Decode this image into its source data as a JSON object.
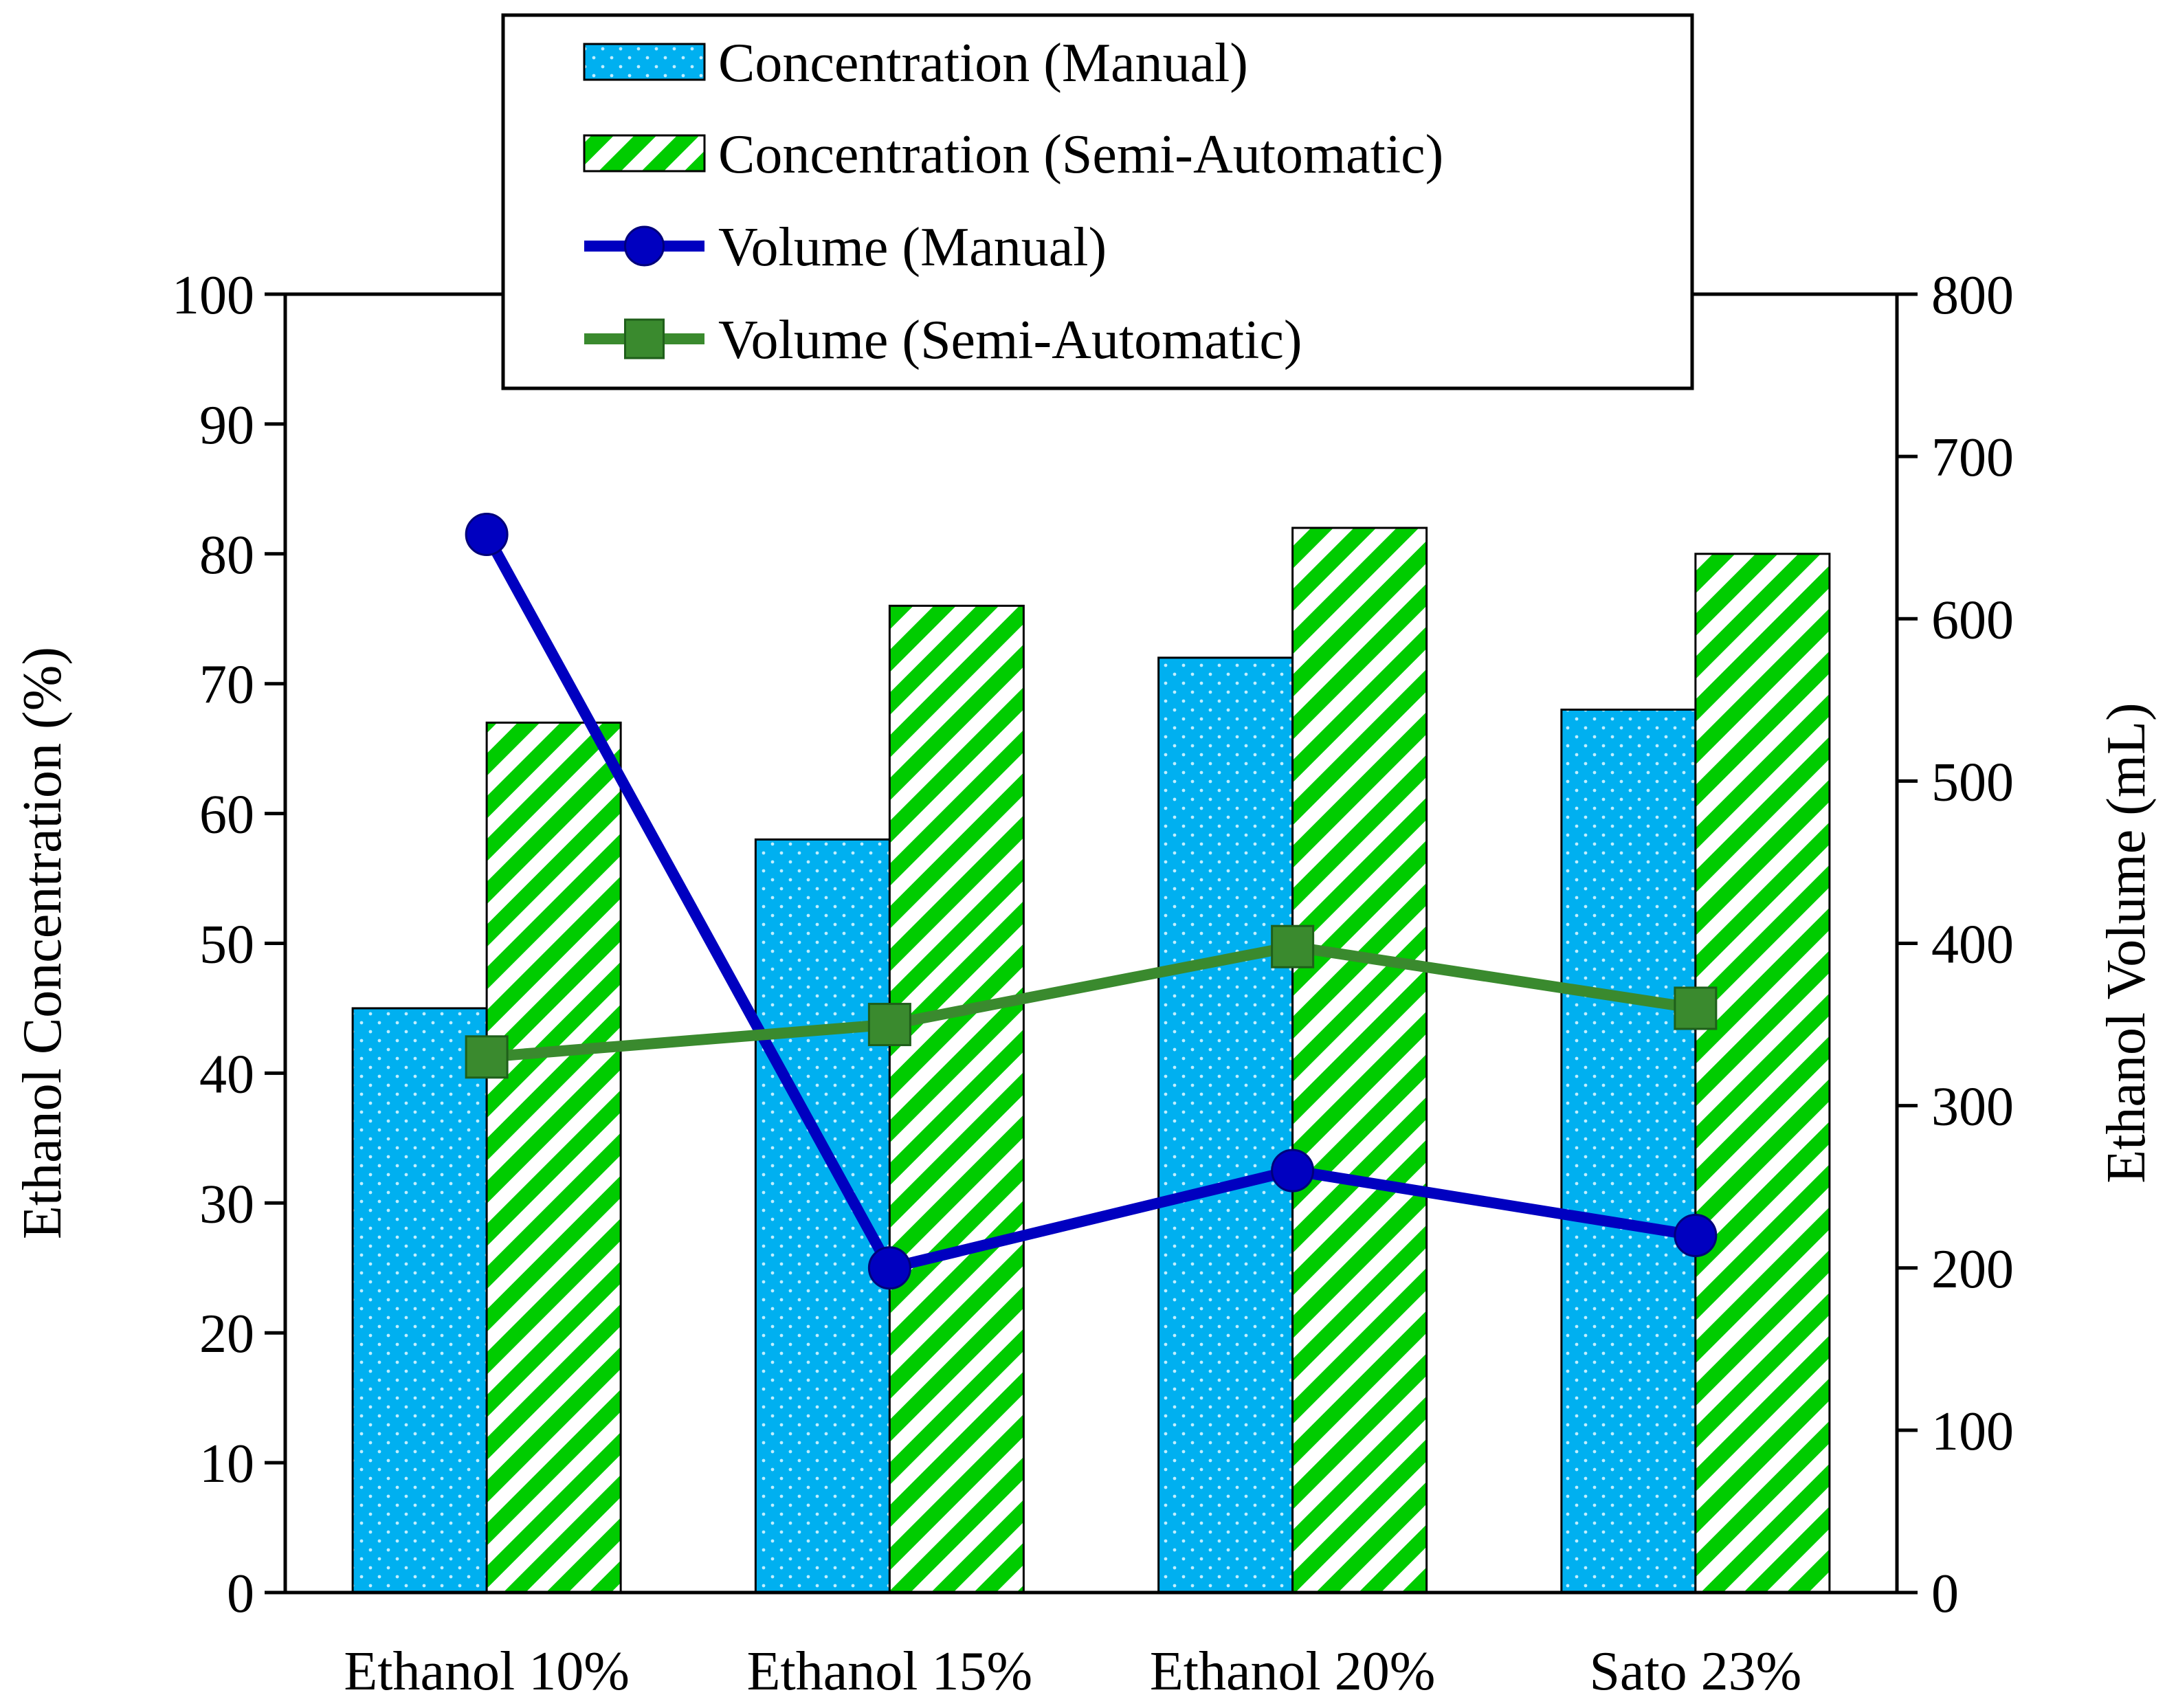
{
  "chart_data": {
    "type": "bar",
    "categories": [
      "Ethanol 10%",
      "Ethanol 15%",
      "Ethanol 20%",
      "Sato 23%"
    ],
    "title": "",
    "ylabel": "Ethanol Concentration (%)",
    "y2label": "Ethanol Volume (mL)",
    "ylim": [
      0,
      100
    ],
    "y2lim": [
      0,
      800
    ],
    "yticks": [
      0,
      10,
      20,
      30,
      40,
      50,
      60,
      70,
      80,
      90,
      100
    ],
    "y2ticks": [
      0,
      100,
      200,
      300,
      400,
      500,
      600,
      700,
      800
    ],
    "grid": false,
    "legend_position": "top",
    "series": [
      {
        "name": "Concentration (Manual)",
        "type": "bar",
        "axis": "left",
        "values": [
          45,
          58,
          72,
          68
        ],
        "color": "#00b0f0",
        "pattern": "dots"
      },
      {
        "name": "Concentration (Semi-Automatic)",
        "type": "bar",
        "axis": "left",
        "values": [
          67,
          76,
          82,
          80
        ],
        "color": "#00cc00",
        "pattern": "diagonal-stripes"
      },
      {
        "name": "Volume (Manual)",
        "type": "line",
        "axis": "right",
        "values": [
          652,
          200,
          260,
          220
        ],
        "color": "#0000c0",
        "marker": "circle"
      },
      {
        "name": "Volume (Semi-Automatic)",
        "type": "line",
        "axis": "right",
        "values": [
          330,
          350,
          398,
          360
        ],
        "color": "#3a8a2e",
        "marker": "square"
      }
    ]
  }
}
